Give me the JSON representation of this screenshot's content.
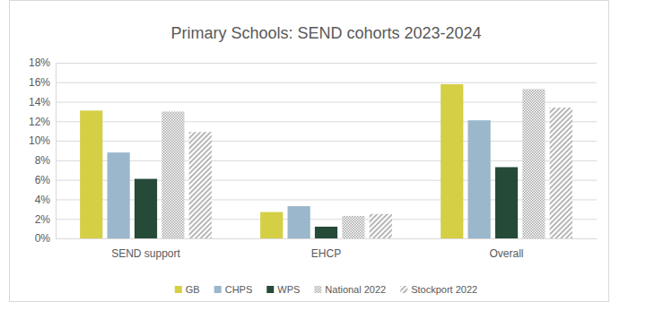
{
  "chart_data": {
    "type": "bar",
    "title": "Primary Schools: SEND cohorts 2023-2024",
    "categories": [
      "SEND support",
      "EHCP",
      "Overall"
    ],
    "series": [
      {
        "name": "GB",
        "color": "#d4cf45",
        "values": [
          13.1,
          2.7,
          15.8
        ]
      },
      {
        "name": "CHPS",
        "color": "#9ab7cb",
        "values": [
          8.8,
          3.3,
          12.1
        ]
      },
      {
        "name": "WPS",
        "color": "#264a38",
        "values": [
          6.1,
          1.2,
          7.3
        ]
      },
      {
        "name": "National 2022",
        "color": "#a6a6a6",
        "marker": "dots",
        "values": [
          13.0,
          2.3,
          15.3
        ]
      },
      {
        "name": "Stockport 2022",
        "color": "#a6a6a6",
        "marker": "stripes",
        "values": [
          10.9,
          2.5,
          13.4
        ]
      }
    ],
    "ylim": [
      0,
      18
    ],
    "yticks": [
      {
        "value": 0,
        "label": "0%"
      },
      {
        "value": 2,
        "label": "2%"
      },
      {
        "value": 4,
        "label": "4%"
      },
      {
        "value": 6,
        "label": "6%"
      },
      {
        "value": 8,
        "label": "8%"
      },
      {
        "value": 10,
        "label": "10%"
      },
      {
        "value": 12,
        "label": "12%"
      },
      {
        "value": 14,
        "label": "14%"
      },
      {
        "value": 16,
        "label": "16%"
      },
      {
        "value": 18,
        "label": "18%"
      }
    ],
    "grid": true,
    "legend": "bottom"
  }
}
